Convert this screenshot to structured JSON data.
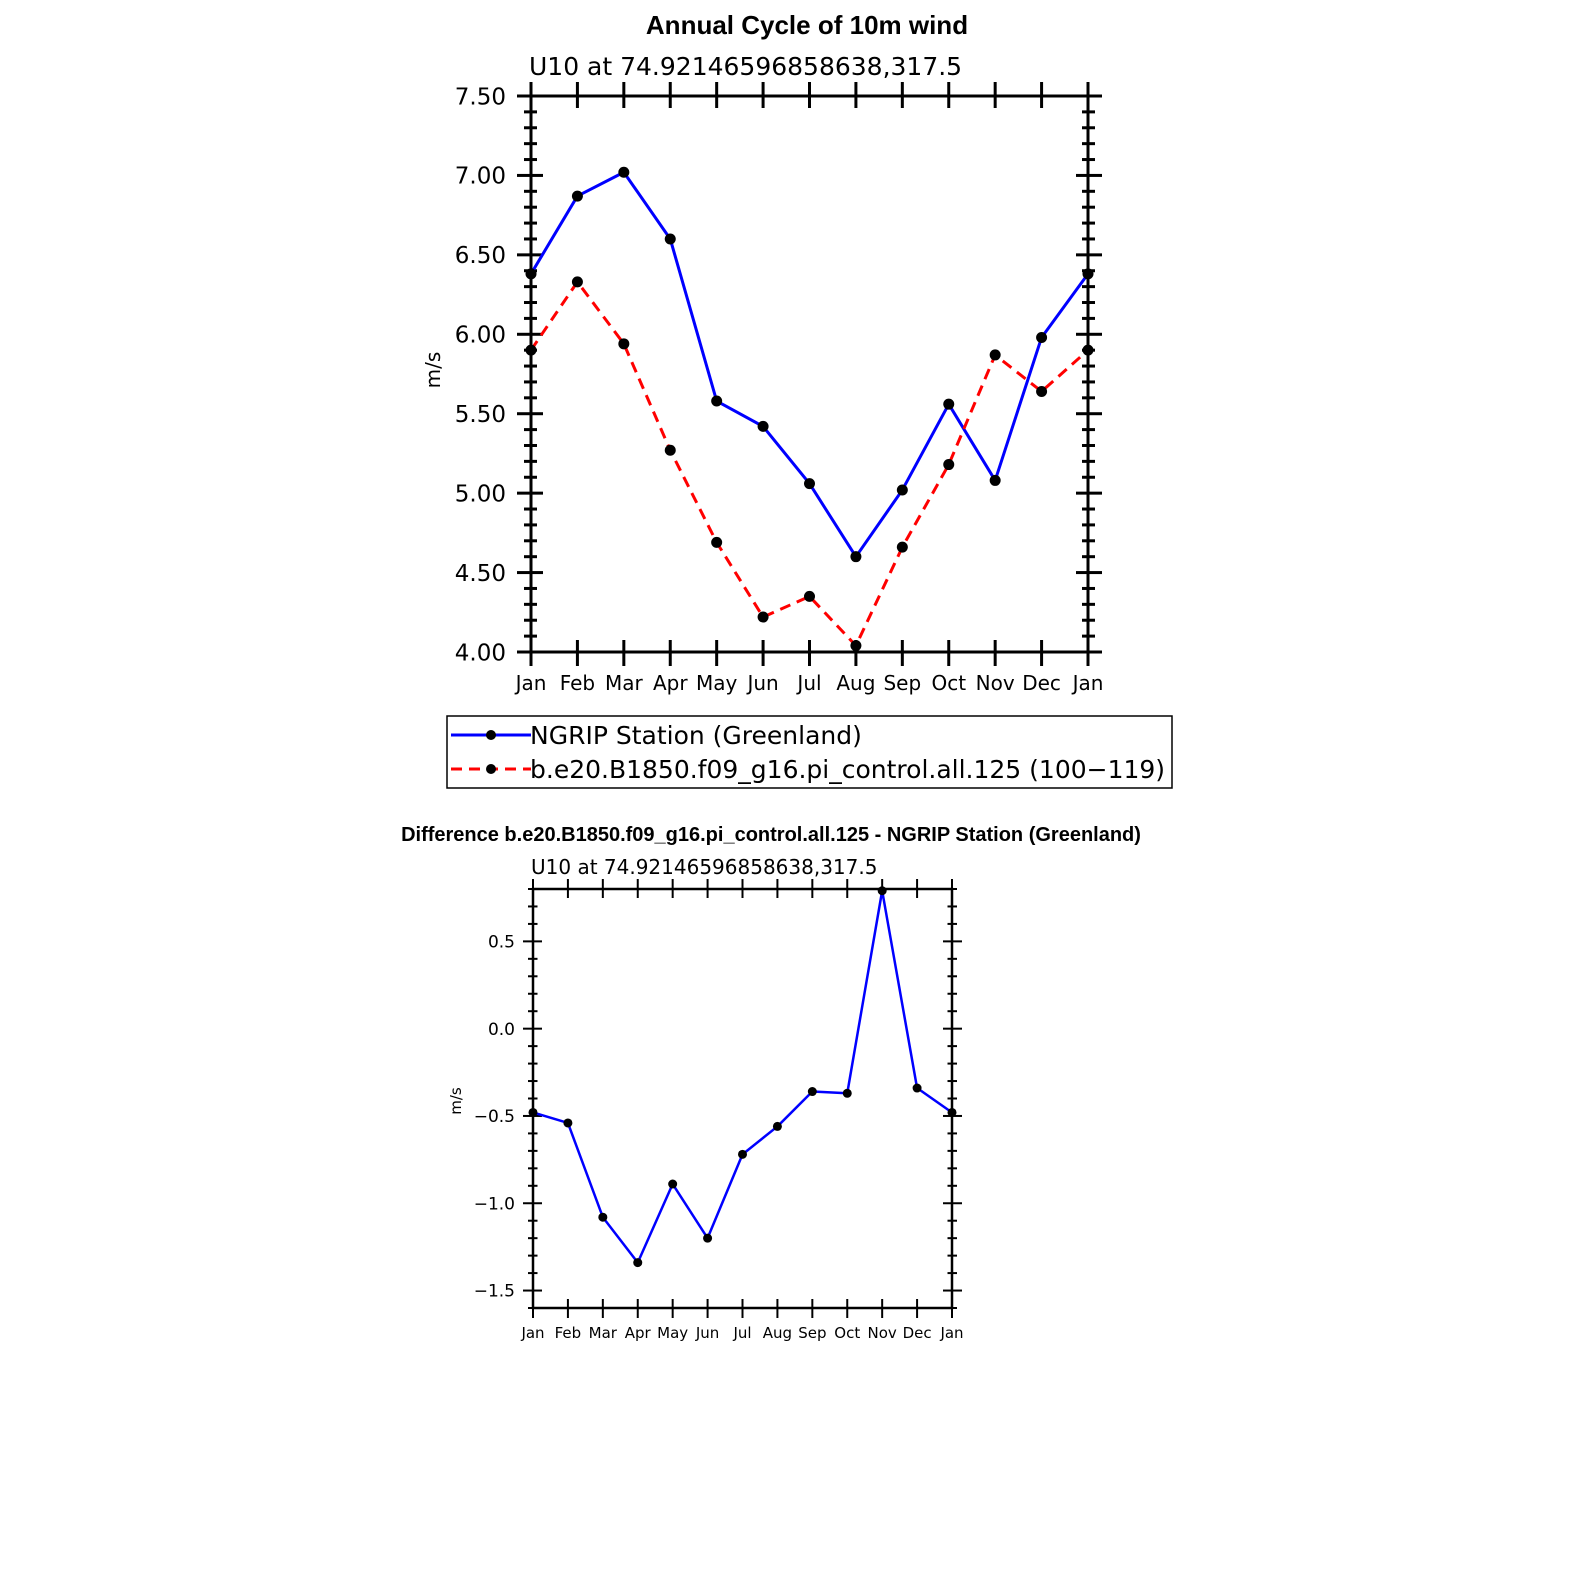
{
  "chart_data": [
    {
      "type": "line",
      "title": "Annual Cycle of 10m wind",
      "subtitle": "U10 at 74.92146596858638,317.5",
      "xlabel": "",
      "ylabel": "m/s",
      "categories": [
        "Jan",
        "Feb",
        "Mar",
        "Apr",
        "May",
        "Jun",
        "Jul",
        "Aug",
        "Sep",
        "Oct",
        "Nov",
        "Dec",
        "Jan"
      ],
      "ylim": [
        4.0,
        7.5
      ],
      "yticks": [
        "4.00",
        "4.50",
        "5.00",
        "5.50",
        "6.00",
        "6.50",
        "7.00",
        "7.50"
      ],
      "grid": false,
      "legend_position": "bottom",
      "series": [
        {
          "name": "NGRIP Station (Greenland)",
          "color": "#0000ff",
          "dash": "solid",
          "values": [
            6.38,
            6.87,
            7.02,
            6.6,
            5.58,
            5.42,
            5.06,
            4.6,
            5.02,
            5.56,
            5.08,
            5.98,
            6.38
          ]
        },
        {
          "name": "b.e20.B1850.f09_g16.pi_control.all.125 (100−119)",
          "color": "#ff0000",
          "dash": "dashed",
          "values": [
            5.9,
            6.33,
            5.94,
            5.27,
            4.69,
            4.22,
            4.35,
            4.04,
            4.66,
            5.18,
            5.87,
            5.64,
            5.9
          ]
        }
      ]
    },
    {
      "type": "line",
      "title": "Difference b.e20.B1850.f09_g16.pi_control.all.125 - NGRIP Station (Greenland)",
      "subtitle": "U10 at 74.92146596858638,317.5",
      "xlabel": "",
      "ylabel": "m/s",
      "categories": [
        "Jan",
        "Feb",
        "Mar",
        "Apr",
        "May",
        "Jun",
        "Jul",
        "Aug",
        "Sep",
        "Oct",
        "Nov",
        "Dec",
        "Jan"
      ],
      "ylim": [
        -1.6,
        0.8
      ],
      "yticks": [
        "−1.5",
        "−1.0",
        "−0.5",
        "0.0",
        "0.5"
      ],
      "grid": false,
      "series": [
        {
          "color": "#0000ff",
          "dash": "solid",
          "values": [
            -0.48,
            -0.54,
            -1.08,
            -1.34,
            -0.89,
            -1.2,
            -0.72,
            -0.56,
            -0.36,
            -0.37,
            0.79,
            -0.34,
            -0.48
          ]
        }
      ]
    }
  ]
}
